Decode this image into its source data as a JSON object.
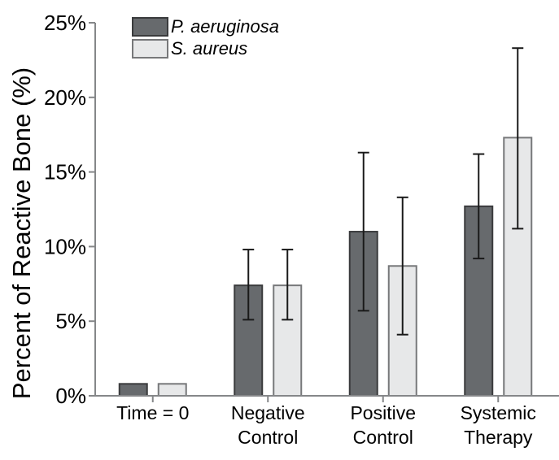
{
  "chart_data": {
    "type": "bar",
    "title": "",
    "ylabel": "Percent of Reactive Bone (%)",
    "xlabel": "",
    "ylim": [
      0,
      25
    ],
    "ytick_step": 5,
    "ytick_labels": [
      "0%",
      "5%",
      "10%",
      "15%",
      "20%",
      "25%"
    ],
    "categories": [
      "Time = 0",
      "Negative Control",
      "Positive Control",
      "Systemic Therapy"
    ],
    "category_label_lines": [
      [
        "Time = 0"
      ],
      [
        "Negative",
        "Control"
      ],
      [
        "Positive",
        "Control"
      ],
      [
        "Systemic",
        "Therapy"
      ]
    ],
    "series": [
      {
        "name": "P. aeruginosa",
        "fill": "#676a6d",
        "border": "#3a3b3d",
        "values": [
          0.8,
          7.4,
          11.0,
          12.7
        ],
        "err_low": [
          null,
          5.1,
          5.7,
          9.2
        ],
        "err_high": [
          null,
          9.8,
          16.3,
          16.2
        ]
      },
      {
        "name": "S. aureus",
        "fill": "#e7e8e9",
        "border": "#77787a",
        "values": [
          0.8,
          7.4,
          8.7,
          17.3
        ],
        "err_low": [
          null,
          5.1,
          4.1,
          11.2
        ],
        "err_high": [
          null,
          9.8,
          13.3,
          23.3
        ]
      }
    ],
    "legend_position": "top-left-inside",
    "grid": false,
    "axis_color": "#858789",
    "error_bar_color": "#1a1a1a",
    "text_color": "#000000"
  }
}
